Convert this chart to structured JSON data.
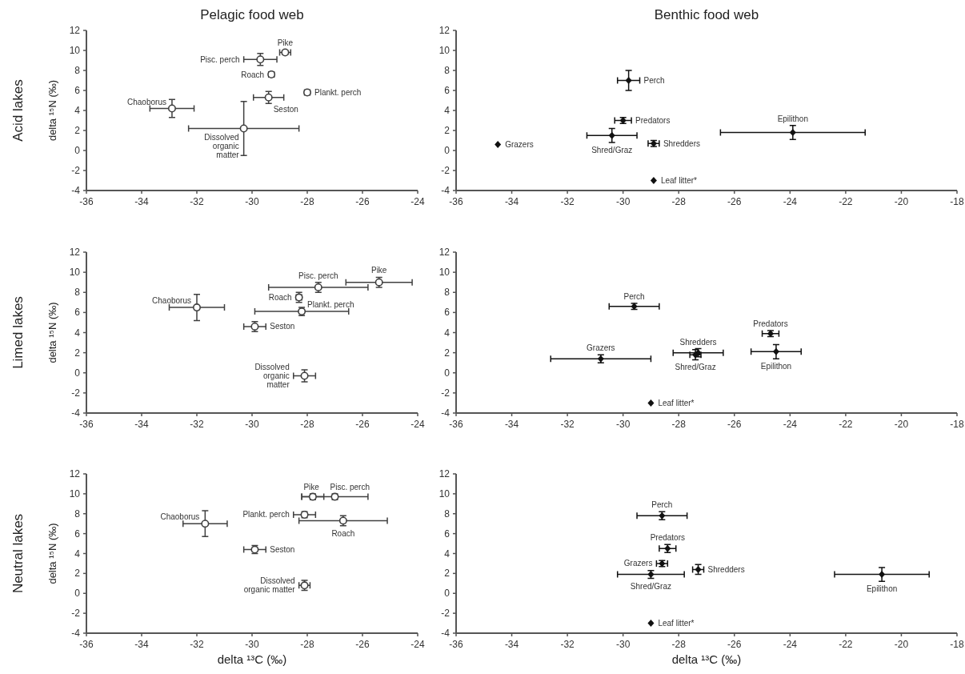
{
  "chart_data": [
    {
      "type": "scatter",
      "title": "Pelagic food web",
      "ylabel": "delta ¹⁵N (‰)",
      "xlim": [
        -36,
        -24
      ],
      "xticks": [
        -36,
        -34,
        -32,
        -30,
        -28,
        -26,
        -24
      ],
      "ylim": [
        -4,
        12
      ],
      "yticks": [
        -4,
        -2,
        0,
        2,
        4,
        6,
        8,
        10,
        12
      ],
      "series": [
        {
          "color": "#404040",
          "x": [
            -28.8,
            -29.7,
            -29.3,
            -28.0,
            -29.4,
            -32.9,
            -30.3
          ],
          "values": [
            9.8,
            9.1,
            7.6,
            5.8,
            5.3,
            4.2,
            2.2
          ],
          "errors": [
            0.2,
            0.6,
            0.2,
            0.2,
            0.6,
            0.9,
            2.7
          ],
          "xerrors": [
            0.2,
            0.6,
            0.1,
            0.1,
            0.55,
            0.8,
            2.0
          ]
        }
      ],
      "annotations": [
        "Acid lakes",
        {
          "text": "Pike",
          "x": -28.8,
          "y": 9.8
        },
        {
          "text": "Pisc. perch",
          "x": -29.7,
          "y": 9.1
        },
        {
          "text": "Roach",
          "x": -29.3,
          "y": 7.6
        },
        {
          "text": "Plankt. perch",
          "x": -28.0,
          "y": 5.8
        },
        {
          "text": "Seston",
          "x": -29.4,
          "y": 5.3
        },
        {
          "text": "Chaoborus",
          "x": -32.9,
          "y": 4.2
        },
        {
          "text": "Dissolved organic matter",
          "x": -30.3,
          "y": 2.2
        }
      ]
    },
    {
      "type": "scatter",
      "title": "Benthic food web",
      "marker": "diamond",
      "xlim": [
        -36,
        -18
      ],
      "xticks": [
        -36,
        -34,
        -32,
        -30,
        -28,
        -26,
        -24,
        -22,
        -20,
        -18
      ],
      "ylim": [
        -4,
        12
      ],
      "yticks": [
        -4,
        -2,
        0,
        2,
        4,
        6,
        8,
        10,
        12
      ],
      "series": [
        {
          "color": "#111111",
          "x": [
            -29.8,
            -30.0,
            -30.4,
            -28.9,
            -34.5,
            -23.9,
            -28.9
          ],
          "values": [
            7.0,
            3.0,
            1.5,
            0.7,
            0.6,
            1.8,
            -3.0
          ],
          "errors": [
            1.0,
            0.3,
            0.7,
            0.3,
            null,
            0.7,
            null
          ],
          "xerrors": [
            0.4,
            0.3,
            0.9,
            0.2,
            null,
            2.6,
            null
          ]
        }
      ],
      "annotations": [
        {
          "text": "Perch",
          "x": -29.8,
          "y": 7.0
        },
        {
          "text": "Predators",
          "x": -30.0,
          "y": 3.0
        },
        {
          "text": "Shred/Graz",
          "x": -30.4,
          "y": 1.5
        },
        {
          "text": "Shredders",
          "x": -28.9,
          "y": 0.7
        },
        {
          "text": "Grazers",
          "x": -34.5,
          "y": 0.6
        },
        {
          "text": "Epilithon",
          "x": -23.9,
          "y": 1.8
        },
        {
          "text": "Leaf litter*",
          "x": -28.9,
          "y": -3.0
        }
      ]
    },
    {
      "type": "scatter",
      "ylabel": "delta ¹⁵N (‰)",
      "xlim": [
        -36,
        -24
      ],
      "xticks": [
        -36,
        -34,
        -32,
        -30,
        -28,
        -26,
        -24
      ],
      "ylim": [
        -4,
        12
      ],
      "yticks": [
        -4,
        -2,
        0,
        2,
        4,
        6,
        8,
        10,
        12
      ],
      "series": [
        {
          "color": "#404040",
          "x": [
            -25.4,
            -27.6,
            -28.3,
            -28.2,
            -29.9,
            -32.0,
            -28.1
          ],
          "values": [
            9.0,
            8.5,
            7.5,
            6.1,
            4.6,
            6.5,
            -0.3
          ],
          "errors": [
            0.5,
            0.5,
            0.5,
            0.4,
            0.5,
            1.3,
            0.6
          ],
          "xerrors": [
            1.2,
            1.8,
            0.1,
            1.7,
            0.4,
            1.0,
            0.4
          ]
        }
      ],
      "annotations": [
        "Limed lakes",
        {
          "text": "Pike",
          "x": -25.4,
          "y": 9.0
        },
        {
          "text": "Pisc. perch",
          "x": -27.6,
          "y": 8.5
        },
        {
          "text": "Roach",
          "x": -28.3,
          "y": 7.5
        },
        {
          "text": "Plankt. perch",
          "x": -28.2,
          "y": 6.1
        },
        {
          "text": "Seston",
          "x": -29.9,
          "y": 4.6
        },
        {
          "text": "Chaoborus",
          "x": -32.0,
          "y": 6.5
        },
        {
          "text": "Dissolved organic matter",
          "x": -28.1,
          "y": -0.3
        }
      ]
    },
    {
      "type": "scatter",
      "marker": "diamond",
      "xlim": [
        -36,
        -18
      ],
      "xticks": [
        -36,
        -34,
        -32,
        -30,
        -28,
        -26,
        -24,
        -22,
        -20,
        -18
      ],
      "ylim": [
        -4,
        12
      ],
      "yticks": [
        -4,
        -2,
        0,
        2,
        4,
        6,
        8,
        10,
        12
      ],
      "series": [
        {
          "color": "#111111",
          "x": [
            -29.6,
            -24.7,
            -27.3,
            -27.4,
            -30.8,
            -24.5,
            -29.0
          ],
          "values": [
            6.6,
            3.9,
            2.0,
            1.8,
            1.4,
            2.1,
            -3.0
          ],
          "errors": [
            0.3,
            0.3,
            0.4,
            0.5,
            0.4,
            0.7,
            null
          ],
          "xerrors": [
            0.9,
            0.3,
            0.9,
            0.2,
            1.8,
            0.9,
            null
          ]
        }
      ],
      "annotations": [
        {
          "text": "Perch",
          "x": -29.6,
          "y": 6.6
        },
        {
          "text": "Predators",
          "x": -24.7,
          "y": 3.9
        },
        {
          "text": "Shredders",
          "x": -27.3,
          "y": 2.0
        },
        {
          "text": "Shred/Graz",
          "x": -27.4,
          "y": 1.8
        },
        {
          "text": "Grazers",
          "x": -30.8,
          "y": 1.4
        },
        {
          "text": "Epilithon",
          "x": -24.5,
          "y": 2.1
        },
        {
          "text": "Leaf litter*",
          "x": -29.0,
          "y": -3.0
        }
      ]
    },
    {
      "type": "scatter",
      "xlabel": "delta ¹³C (‰)",
      "ylabel": "delta ¹⁵N (‰)",
      "xlim": [
        -36,
        -24
      ],
      "xticks": [
        -36,
        -34,
        -32,
        -30,
        -28,
        -26,
        -24
      ],
      "ylim": [
        -4,
        12
      ],
      "yticks": [
        -4,
        -2,
        0,
        2,
        4,
        6,
        8,
        10,
        12
      ],
      "series": [
        {
          "color": "#404040",
          "x": [
            -27.8,
            -27.0,
            -28.1,
            -26.7,
            -31.7,
            -29.9,
            -28.1
          ],
          "values": [
            9.7,
            9.7,
            7.9,
            7.3,
            7.0,
            4.4,
            0.8
          ],
          "errors": [
            0.3,
            0.3,
            0.3,
            0.5,
            1.3,
            0.4,
            0.5
          ],
          "xerrors": [
            0.4,
            1.2,
            0.4,
            1.6,
            0.8,
            0.4,
            0.2
          ]
        }
      ],
      "annotations": [
        "Neutral lakes",
        {
          "text": "Pike",
          "x": -27.8,
          "y": 9.7
        },
        {
          "text": "Pisc. perch",
          "x": -27.0,
          "y": 9.7
        },
        {
          "text": "Plankt. perch",
          "x": -28.1,
          "y": 7.9
        },
        {
          "text": "Roach",
          "x": -26.7,
          "y": 7.3
        },
        {
          "text": "Chaoborus",
          "x": -31.7,
          "y": 7.0
        },
        {
          "text": "Seston",
          "x": -29.9,
          "y": 4.4
        },
        {
          "text": "Dissolved organic matter",
          "x": -28.1,
          "y": 0.8
        }
      ]
    },
    {
      "type": "scatter",
      "xlabel": "delta ¹³C (‰)",
      "marker": "diamond",
      "xlim": [
        -36,
        -18
      ],
      "xticks": [
        -36,
        -34,
        -32,
        -30,
        -28,
        -26,
        -24,
        -22,
        -20,
        -18
      ],
      "ylim": [
        -4,
        12
      ],
      "yticks": [
        -4,
        -2,
        0,
        2,
        4,
        6,
        8,
        10,
        12
      ],
      "series": [
        {
          "color": "#111111",
          "x": [
            -28.6,
            -28.4,
            -28.6,
            -27.3,
            -29.0,
            -20.7,
            -29.0
          ],
          "values": [
            7.8,
            4.5,
            3.0,
            2.4,
            1.9,
            1.9,
            -3.0
          ],
          "errors": [
            0.4,
            0.4,
            0.3,
            0.5,
            0.4,
            0.7,
            null
          ],
          "xerrors": [
            0.9,
            0.3,
            0.2,
            0.2,
            1.2,
            1.7,
            null
          ]
        }
      ],
      "annotations": [
        {
          "text": "Perch",
          "x": -28.6,
          "y": 7.8
        },
        {
          "text": "Predators",
          "x": -28.4,
          "y": 4.5
        },
        {
          "text": "Grazers",
          "x": -28.6,
          "y": 3.0
        },
        {
          "text": "Shredders",
          "x": -27.3,
          "y": 2.4
        },
        {
          "text": "Shred/Graz",
          "x": -29.0,
          "y": 1.9
        },
        {
          "text": "Epilithon",
          "x": -20.7,
          "y": 1.9
        },
        {
          "text": "Leaf litter*",
          "x": -29.0,
          "y": -3.0
        }
      ]
    }
  ]
}
